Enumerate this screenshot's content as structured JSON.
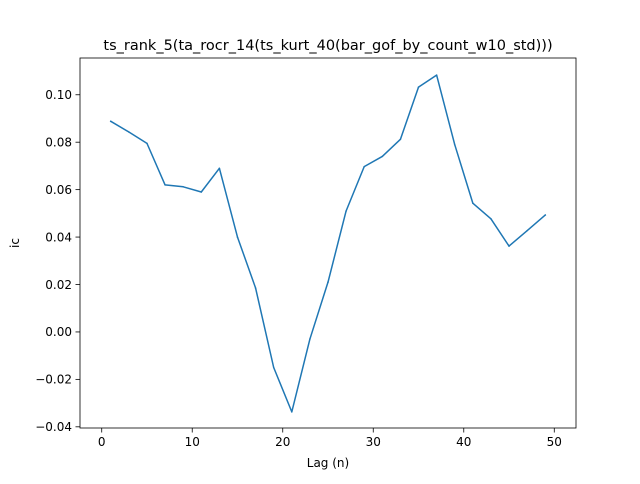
{
  "chart_data": {
    "type": "line",
    "title": "ts_rank_5(ta_rocr_14(ts_kurt_40(bar_gof_by_count_w10_std)))",
    "xlabel": "Lag (n)",
    "ylabel": "ic",
    "xlim": [
      -2.4,
      52.4
    ],
    "ylim": [
      -0.0405,
      0.1155
    ],
    "grid": false,
    "line_color": "#1f77b4",
    "x_ticks": [
      0,
      10,
      20,
      30,
      40,
      50
    ],
    "x_tick_labels": [
      "0",
      "10",
      "20",
      "30",
      "40",
      "50"
    ],
    "y_ticks": [
      -0.04,
      -0.02,
      0.0,
      0.02,
      0.04,
      0.06,
      0.08,
      0.1
    ],
    "y_tick_labels": [
      "−0.04",
      "−0.02",
      "0.00",
      "0.02",
      "0.04",
      "0.06",
      "0.08",
      "0.10"
    ],
    "series": [
      {
        "x": [
          1,
          3,
          5,
          7,
          9,
          11,
          13,
          15,
          17,
          19,
          21,
          23,
          25,
          27,
          29,
          31,
          33,
          35,
          37,
          39,
          41,
          43,
          45,
          47,
          49
        ],
        "values": [
          0.0888,
          0.0843,
          0.0795,
          0.062,
          0.0612,
          0.059,
          0.069,
          0.04,
          0.0185,
          -0.015,
          -0.0337,
          -0.003,
          0.021,
          0.051,
          0.0697,
          0.074,
          0.0812,
          0.1032,
          0.1083,
          0.079,
          0.0543,
          0.0477,
          0.0362,
          0.0427,
          0.0493
        ]
      }
    ]
  }
}
